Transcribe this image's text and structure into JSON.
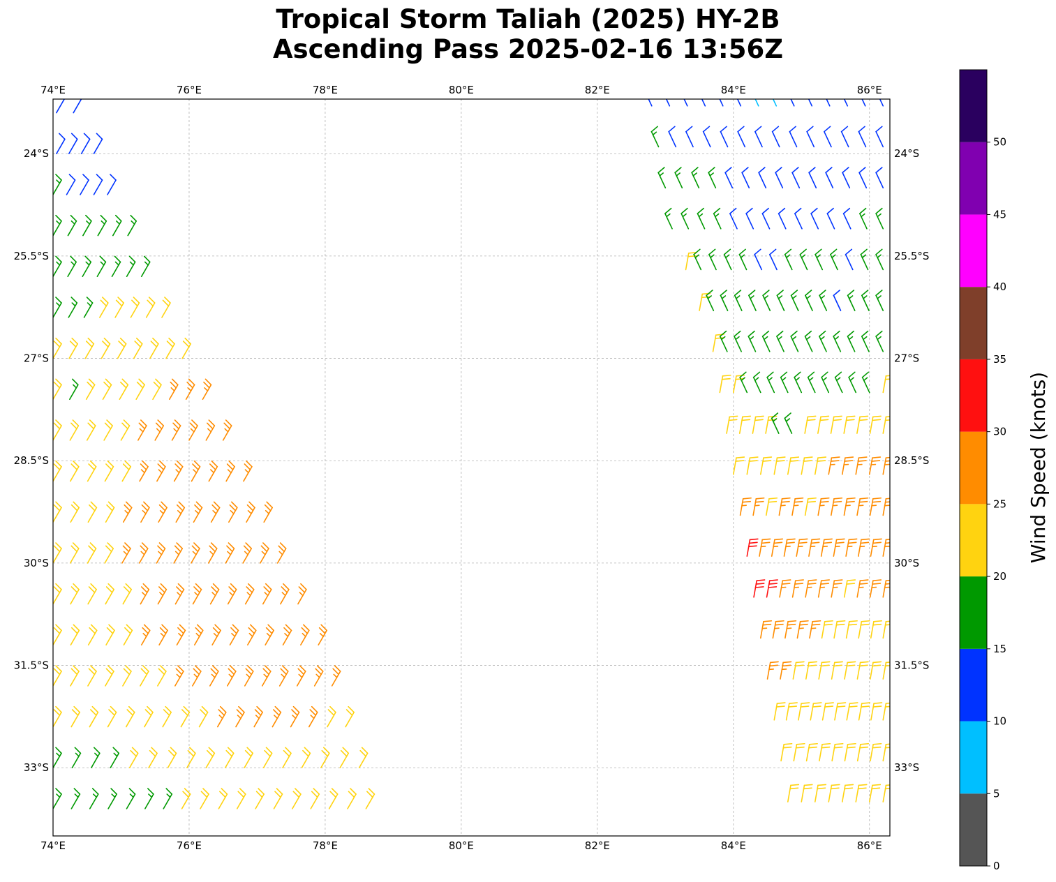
{
  "title": {
    "line1": "Tropical Storm Taliah (2025) HY-2B",
    "line2": "Ascending Pass 2025-02-16 13:56Z"
  },
  "map": {
    "lon_range": [
      74.0,
      86.3
    ],
    "lat_range": [
      -34.0,
      -23.2
    ],
    "lon_ticks": [
      {
        "value": 74,
        "label": "74°E"
      },
      {
        "value": 76,
        "label": "76°E"
      },
      {
        "value": 78,
        "label": "78°E"
      },
      {
        "value": 80,
        "label": "80°E"
      },
      {
        "value": 82,
        "label": "82°E"
      },
      {
        "value": 84,
        "label": "84°E"
      },
      {
        "value": 86,
        "label": "86°E"
      }
    ],
    "lat_ticks": [
      {
        "value": -24.0,
        "label": "24°S"
      },
      {
        "value": -25.5,
        "label": "25.5°S"
      },
      {
        "value": -27.0,
        "label": "27°S"
      },
      {
        "value": -28.5,
        "label": "28.5°S"
      },
      {
        "value": -30.0,
        "label": "30°S"
      },
      {
        "value": -31.5,
        "label": "31.5°S"
      },
      {
        "value": -33.0,
        "label": "33°S"
      }
    ],
    "gridlines": true
  },
  "colorbar": {
    "label": "Wind Speed (knots)",
    "bins": [
      {
        "min": 0,
        "max": 5,
        "color": "#555555"
      },
      {
        "min": 5,
        "max": 10,
        "color": "#00bfff"
      },
      {
        "min": 10,
        "max": 15,
        "color": "#0033ff"
      },
      {
        "min": 15,
        "max": 20,
        "color": "#009900"
      },
      {
        "min": 20,
        "max": 25,
        "color": "#ffd310"
      },
      {
        "min": 25,
        "max": 30,
        "color": "#ff8c00"
      },
      {
        "min": 30,
        "max": 35,
        "color": "#ff1010"
      },
      {
        "min": 35,
        "max": 40,
        "color": "#7f3f2a"
      },
      {
        "min": 40,
        "max": 45,
        "color": "#ff00ff"
      },
      {
        "min": 45,
        "max": 50,
        "color": "#8000b0"
      },
      {
        "min": 50,
        "max": 55,
        "color": "#2a005f"
      }
    ],
    "ticks": [
      0,
      5,
      10,
      15,
      20,
      25,
      30,
      35,
      40,
      45,
      50
    ]
  },
  "swaths": [
    {
      "name": "west-swath",
      "rows": [
        {
          "lat": -23.4,
          "lon_start": 74.05,
          "lon_end": 74.3,
          "speeds": [
            12,
            13
          ]
        },
        {
          "lat": -24.0,
          "lon_start": 74.05,
          "lon_end": 74.6,
          "speeds": [
            12,
            12,
            13,
            13
          ]
        },
        {
          "lat": -24.6,
          "lon_start": 74.0,
          "lon_end": 74.8,
          "speeds": [
            16,
            13,
            12,
            13,
            14
          ]
        },
        {
          "lat": -25.2,
          "lon_start": 74.0,
          "lon_end": 75.1,
          "speeds": [
            16,
            17,
            16,
            16,
            17,
            17
          ]
        },
        {
          "lat": -25.8,
          "lon_start": 74.0,
          "lon_end": 75.3,
          "speeds": [
            17,
            16,
            17,
            17,
            18,
            18,
            19
          ]
        },
        {
          "lat": -26.4,
          "lon_start": 74.0,
          "lon_end": 75.6,
          "speeds": [
            16,
            17,
            18,
            22,
            21,
            22,
            21,
            22
          ]
        },
        {
          "lat": -27.0,
          "lon_start": 74.0,
          "lon_end": 75.9,
          "speeds": [
            22,
            22,
            22,
            21,
            22,
            22,
            22,
            23,
            22
          ]
        },
        {
          "lat": -27.6,
          "lon_start": 74.0,
          "lon_end": 76.2,
          "speeds": [
            22,
            16,
            22,
            23,
            22,
            23,
            24,
            26,
            26,
            26
          ]
        },
        {
          "lat": -28.2,
          "lon_start": 74.0,
          "lon_end": 76.5,
          "speeds": [
            22,
            22,
            23,
            22,
            23,
            26,
            26,
            27,
            27,
            27,
            27
          ]
        },
        {
          "lat": -28.8,
          "lon_start": 74.0,
          "lon_end": 76.8,
          "speeds": [
            22,
            23,
            23,
            22,
            23,
            26,
            27,
            27,
            27,
            26,
            27,
            27
          ]
        },
        {
          "lat": -29.4,
          "lon_start": 74.0,
          "lon_end": 77.1,
          "speeds": [
            22,
            22,
            23,
            23,
            26,
            27,
            27,
            28,
            27,
            27,
            27,
            26,
            27
          ]
        },
        {
          "lat": -30.0,
          "lon_start": 74.0,
          "lon_end": 77.3,
          "speeds": [
            22,
            22,
            22,
            23,
            26,
            27,
            27,
            28,
            28,
            27,
            26,
            27,
            27,
            27
          ]
        },
        {
          "lat": -30.6,
          "lon_start": 74.0,
          "lon_end": 77.6,
          "speeds": [
            22,
            22,
            23,
            22,
            23,
            26,
            27,
            27,
            27,
            27,
            26,
            27,
            27,
            26,
            26
          ]
        },
        {
          "lat": -31.2,
          "lon_start": 74.0,
          "lon_end": 77.9,
          "speeds": [
            22,
            23,
            22,
            22,
            23,
            26,
            26,
            27,
            27,
            26,
            27,
            27,
            26,
            27,
            26,
            26
          ]
        },
        {
          "lat": -31.8,
          "lon_start": 74.0,
          "lon_end": 78.1,
          "speeds": [
            22,
            22,
            22,
            23,
            22,
            23,
            22,
            26,
            27,
            26,
            26,
            27,
            26,
            27,
            26,
            26,
            26
          ]
        },
        {
          "lat": -32.4,
          "lon_start": 74.0,
          "lon_end": 78.3,
          "speeds": [
            22,
            22,
            23,
            22,
            22,
            23,
            22,
            22,
            23,
            26,
            26,
            26,
            27,
            26,
            26,
            22,
            22
          ]
        },
        {
          "lat": -33.0,
          "lon_start": 74.0,
          "lon_end": 78.5,
          "speeds": [
            17,
            18,
            18,
            17,
            22,
            22,
            22,
            22,
            22,
            23,
            22,
            22,
            22,
            23,
            22,
            22,
            22
          ]
        },
        {
          "lat": -33.6,
          "lon_start": 74.0,
          "lon_end": 78.6,
          "speeds": [
            17,
            17,
            18,
            18,
            17,
            17,
            18,
            22,
            22,
            22,
            22,
            22,
            23,
            22,
            22,
            22,
            22,
            22
          ]
        }
      ]
    },
    {
      "name": "east-swath",
      "rows": [
        {
          "lat": -23.3,
          "lon_start": 82.8,
          "lon_end": 86.2,
          "speeds": [
            12,
            12,
            12,
            13,
            12,
            12,
            8,
            8,
            12,
            12,
            12,
            12,
            12,
            12
          ]
        },
        {
          "lat": -23.9,
          "lon_start": 82.9,
          "lon_end": 86.2,
          "speeds": [
            17,
            12,
            12,
            13,
            12,
            13,
            12,
            12,
            12,
            12,
            12,
            12,
            12,
            12
          ]
        },
        {
          "lat": -24.5,
          "lon_start": 83.0,
          "lon_end": 86.2,
          "speeds": [
            17,
            17,
            17,
            16,
            12,
            13,
            12,
            12,
            12,
            12,
            12,
            12,
            12,
            12
          ]
        },
        {
          "lat": -25.1,
          "lon_start": 83.1,
          "lon_end": 86.2,
          "speeds": [
            17,
            17,
            17,
            17,
            12,
            12,
            12,
            12,
            13,
            12,
            12,
            12,
            16,
            16
          ]
        },
        {
          "lat": -25.7,
          "lon_start": 83.3,
          "lon_end": 86.2,
          "speeds": [
            22,
            17,
            17,
            16,
            17,
            12,
            12,
            16,
            17,
            16,
            16,
            12,
            16,
            16
          ]
        },
        {
          "lat": -26.3,
          "lon_start": 83.5,
          "lon_end": 86.2,
          "speeds": [
            22,
            17,
            17,
            17,
            16,
            17,
            16,
            17,
            16,
            16,
            12,
            17,
            16,
            16
          ]
        },
        {
          "lat": -26.9,
          "lon_start": 83.7,
          "lon_end": 86.2,
          "speeds": [
            22,
            17,
            17,
            17,
            17,
            16,
            16,
            16,
            17,
            16,
            17,
            16,
            17
          ]
        },
        {
          "lat": -27.5,
          "lon_start": 83.8,
          "lon_end": 86.2,
          "speeds": [
            22,
            22,
            17,
            17,
            17,
            16,
            16,
            17,
            16,
            16,
            17,
            17,
            22
          ]
        },
        {
          "lat": -28.1,
          "lon_start": 83.9,
          "lon_end": 86.2,
          "speeds": [
            22,
            22,
            22,
            22,
            17,
            17,
            22,
            22,
            22,
            22,
            22,
            22,
            22
          ]
        },
        {
          "lat": -28.7,
          "lon_start": 84.0,
          "lon_end": 86.2,
          "speeds": [
            22,
            22,
            22,
            22,
            22,
            23,
            22,
            26,
            26,
            26,
            27,
            27
          ]
        },
        {
          "lat": -29.3,
          "lon_start": 84.1,
          "lon_end": 86.2,
          "speeds": [
            27,
            26,
            22,
            26,
            26,
            22,
            26,
            27,
            27,
            26,
            27,
            26
          ]
        },
        {
          "lat": -29.9,
          "lon_start": 84.2,
          "lon_end": 86.2,
          "speeds": [
            32,
            27,
            27,
            26,
            26,
            27,
            26,
            27,
            27,
            26,
            26,
            27
          ]
        },
        {
          "lat": -30.5,
          "lon_start": 84.3,
          "lon_end": 86.2,
          "speeds": [
            32,
            31,
            27,
            27,
            27,
            26,
            27,
            22,
            26,
            26,
            26
          ]
        },
        {
          "lat": -31.1,
          "lon_start": 84.4,
          "lon_end": 86.2,
          "speeds": [
            27,
            26,
            27,
            27,
            26,
            22,
            22,
            22,
            22,
            22,
            22
          ]
        },
        {
          "lat": -31.7,
          "lon_start": 84.5,
          "lon_end": 86.2,
          "speeds": [
            27,
            26,
            22,
            22,
            22,
            22,
            22,
            22,
            22,
            22
          ]
        },
        {
          "lat": -32.3,
          "lon_start": 84.6,
          "lon_end": 86.2,
          "speeds": [
            22,
            22,
            22,
            22,
            22,
            22,
            22,
            22,
            22,
            22
          ]
        },
        {
          "lat": -32.9,
          "lon_start": 84.7,
          "lon_end": 86.2,
          "speeds": [
            22,
            22,
            22,
            22,
            22,
            22,
            22,
            22,
            22
          ]
        },
        {
          "lat": -33.5,
          "lon_start": 84.8,
          "lon_end": 86.2,
          "speeds": [
            22,
            22,
            22,
            22,
            22,
            22,
            22,
            22
          ]
        }
      ]
    }
  ]
}
